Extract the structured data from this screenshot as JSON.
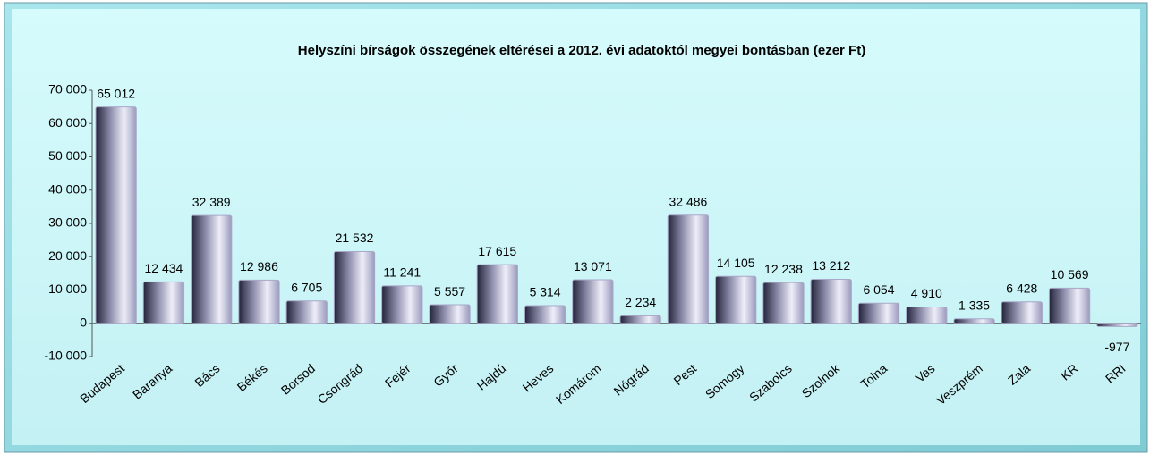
{
  "chart_data": {
    "type": "bar",
    "title": "Helyszíni bírságok összegének  eltérései a 2012. évi adatoktól megyei bontásban (ezer Ft)",
    "categories": [
      "Budapest",
      "Baranya",
      "Bács",
      "Békés",
      "Borsod",
      "Csongrád",
      "Fejér",
      "Győr",
      "Hajdú",
      "Heves",
      "Komárom",
      "Nógrád",
      "Pest",
      "Somogy",
      "Szabolcs",
      "Szolnok",
      "Tolna",
      "Vas",
      "Veszprém",
      "Zala",
      "KR",
      "RRI"
    ],
    "values": [
      65012,
      12434,
      32389,
      12986,
      6705,
      21532,
      11241,
      5557,
      17615,
      5314,
      13071,
      2234,
      32486,
      14105,
      12238,
      13212,
      6054,
      4910,
      1335,
      6428,
      10569,
      -977
    ],
    "value_labels": [
      "65 012",
      "12 434",
      "32 389",
      "12 986",
      "6 705",
      "21 532",
      "11 241",
      "5 557",
      "17 615",
      "5 314",
      "13 071",
      "2 234",
      "32 486",
      "14 105",
      "12 238",
      "13 212",
      "6 054",
      "4 910",
      "1 335",
      "6 428",
      "10 569",
      "-977"
    ],
    "color": "#a8a8c8",
    "ylim": [
      -10000,
      70000
    ],
    "yticks": [
      {
        "value": -10000,
        "label": "-10 000"
      },
      0,
      {
        "value": 10000,
        "label": "10 000"
      },
      {
        "value": 20000,
        "label": "20 000"
      },
      {
        "value": 30000,
        "label": "30 000"
      },
      {
        "value": 40000,
        "label": "40 000"
      },
      {
        "value": 50000,
        "label": "50 000"
      },
      {
        "value": 60000,
        "label": "60 000"
      },
      {
        "value": 70000,
        "label": "70 000"
      }
    ],
    "grid": false
  }
}
